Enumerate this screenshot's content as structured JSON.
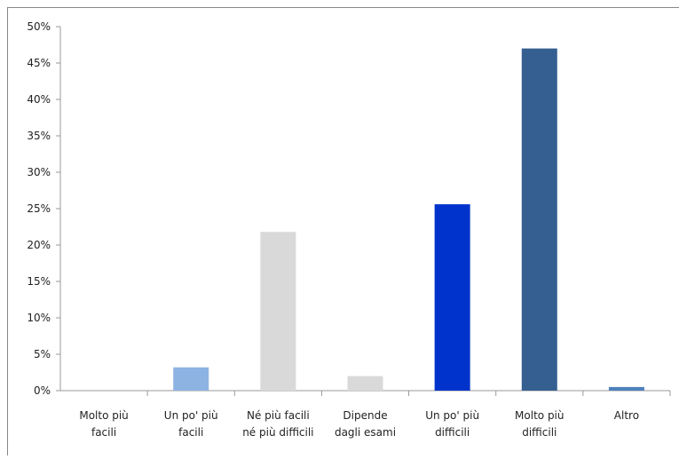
{
  "chart_data": {
    "type": "bar",
    "categories": [
      "Molto più\nfacili",
      "Un po' più\nfacili",
      "Né più facili\nné più difficili",
      "Dipende\ndagli esami",
      "Un po' più\ndifficili",
      "Molto più\ndifficili",
      "Altro"
    ],
    "values": [
      0,
      3.2,
      21.8,
      2.0,
      25.6,
      47.0,
      0.5
    ],
    "colors": [
      "#4f81bd",
      "#8db3e2",
      "#d9d9d9",
      "#d9d9d9",
      "#0033cc",
      "#355f91",
      "#4f81bd"
    ],
    "ylim": [
      0,
      50
    ],
    "yticks": [
      {
        "value": 0,
        "label": "0%"
      },
      {
        "value": 5,
        "label": "5%"
      },
      {
        "value": 10,
        "label": "10%"
      },
      {
        "value": 15,
        "label": "15%"
      },
      {
        "value": 20,
        "label": "20%"
      },
      {
        "value": 25,
        "label": "25%"
      },
      {
        "value": 30,
        "label": "30%"
      },
      {
        "value": 35,
        "label": "35%"
      },
      {
        "value": 40,
        "label": "40%"
      },
      {
        "value": 45,
        "label": "45%"
      },
      {
        "value": 50,
        "label": "50%"
      }
    ],
    "grid": false
  }
}
